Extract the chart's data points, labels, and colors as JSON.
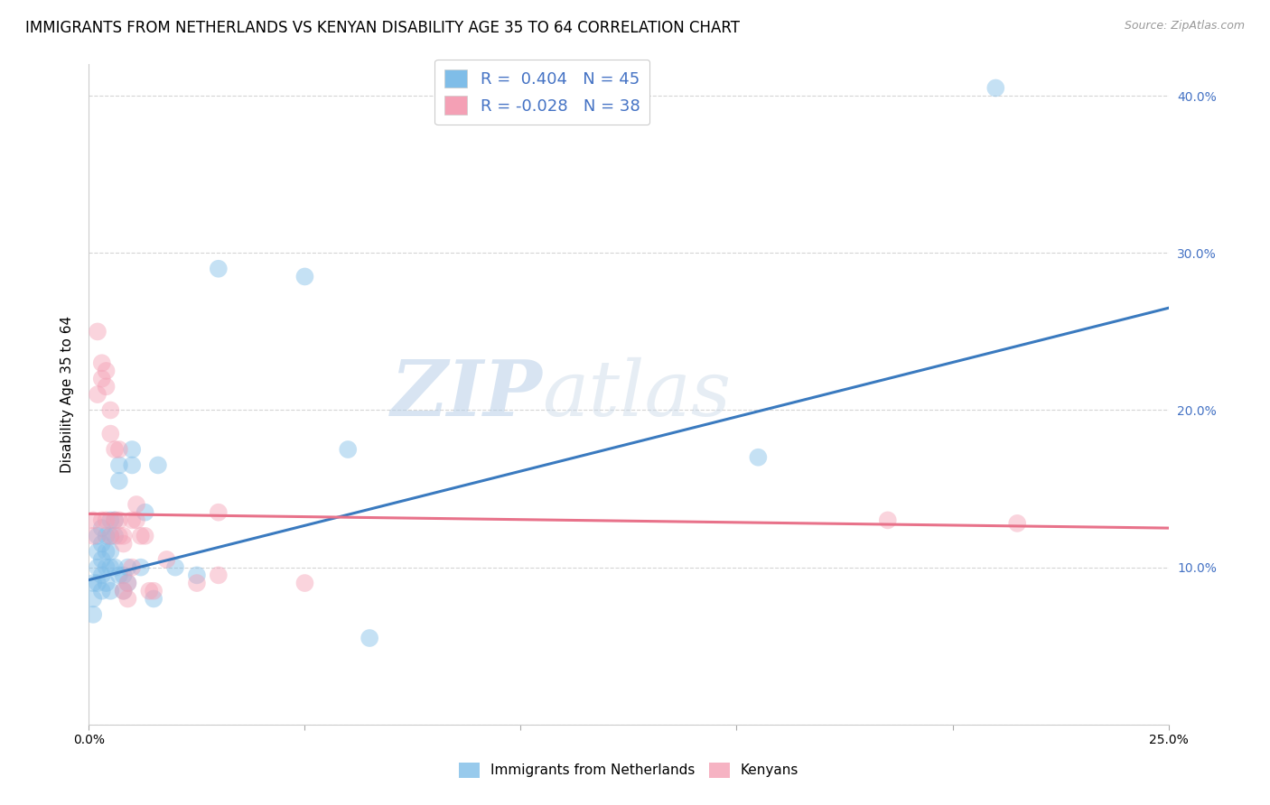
{
  "title": "IMMIGRANTS FROM NETHERLANDS VS KENYAN DISABILITY AGE 35 TO 64 CORRELATION CHART",
  "source": "Source: ZipAtlas.com",
  "xlabel": "",
  "ylabel": "Disability Age 35 to 64",
  "xlim": [
    0.0,
    0.25
  ],
  "ylim": [
    0.0,
    0.42
  ],
  "xticks": [
    0.0,
    0.05,
    0.1,
    0.15,
    0.2,
    0.25
  ],
  "yticks": [
    0.0,
    0.1,
    0.2,
    0.3,
    0.4
  ],
  "xticklabels": [
    "0.0%",
    "",
    "",
    "",
    "",
    "25.0%"
  ],
  "yticklabels_right": [
    "",
    "10.0%",
    "20.0%",
    "30.0%",
    "40.0%"
  ],
  "legend_labels": [
    "Immigrants from Netherlands",
    "Kenyans"
  ],
  "blue_R": "0.404",
  "blue_N": "45",
  "pink_R": "-0.028",
  "pink_N": "38",
  "blue_color": "#7fbde8",
  "pink_color": "#f4a0b5",
  "blue_line_color": "#3a7abf",
  "pink_line_color": "#e8728a",
  "watermark_zip": "ZIP",
  "watermark_atlas": "atlas",
  "blue_x": [
    0.001,
    0.001,
    0.001,
    0.002,
    0.002,
    0.002,
    0.002,
    0.003,
    0.003,
    0.003,
    0.003,
    0.003,
    0.004,
    0.004,
    0.004,
    0.004,
    0.005,
    0.005,
    0.005,
    0.005,
    0.005,
    0.006,
    0.006,
    0.006,
    0.007,
    0.007,
    0.007,
    0.008,
    0.008,
    0.009,
    0.009,
    0.01,
    0.01,
    0.012,
    0.013,
    0.015,
    0.016,
    0.02,
    0.025,
    0.03,
    0.05,
    0.06,
    0.065,
    0.155,
    0.21
  ],
  "blue_y": [
    0.09,
    0.08,
    0.07,
    0.12,
    0.11,
    0.1,
    0.09,
    0.125,
    0.115,
    0.105,
    0.095,
    0.085,
    0.12,
    0.11,
    0.1,
    0.09,
    0.13,
    0.12,
    0.11,
    0.1,
    0.085,
    0.13,
    0.12,
    0.1,
    0.165,
    0.155,
    0.095,
    0.095,
    0.085,
    0.1,
    0.09,
    0.175,
    0.165,
    0.1,
    0.135,
    0.08,
    0.165,
    0.1,
    0.095,
    0.29,
    0.285,
    0.175,
    0.055,
    0.17,
    0.405
  ],
  "pink_x": [
    0.001,
    0.001,
    0.002,
    0.002,
    0.003,
    0.003,
    0.003,
    0.004,
    0.004,
    0.004,
    0.005,
    0.005,
    0.005,
    0.006,
    0.006,
    0.007,
    0.007,
    0.007,
    0.008,
    0.008,
    0.008,
    0.009,
    0.009,
    0.01,
    0.01,
    0.011,
    0.011,
    0.012,
    0.013,
    0.014,
    0.015,
    0.018,
    0.025,
    0.03,
    0.03,
    0.05,
    0.185,
    0.215
  ],
  "pink_y": [
    0.13,
    0.12,
    0.25,
    0.21,
    0.23,
    0.22,
    0.13,
    0.225,
    0.215,
    0.13,
    0.2,
    0.185,
    0.12,
    0.175,
    0.13,
    0.175,
    0.13,
    0.12,
    0.12,
    0.115,
    0.085,
    0.09,
    0.08,
    0.13,
    0.1,
    0.14,
    0.13,
    0.12,
    0.12,
    0.085,
    0.085,
    0.105,
    0.09,
    0.135,
    0.095,
    0.09,
    0.13,
    0.128
  ],
  "blue_line_x0": 0.0,
  "blue_line_y0": 0.092,
  "blue_line_x1": 0.25,
  "blue_line_y1": 0.265,
  "pink_line_x0": 0.0,
  "pink_line_y0": 0.134,
  "pink_line_x1": 0.25,
  "pink_line_y1": 0.125,
  "grid_color": "#d4d4d4",
  "background_color": "#ffffff",
  "title_fontsize": 12,
  "axis_label_fontsize": 11,
  "tick_fontsize": 10,
  "marker_size": 200,
  "marker_alpha": 0.45
}
